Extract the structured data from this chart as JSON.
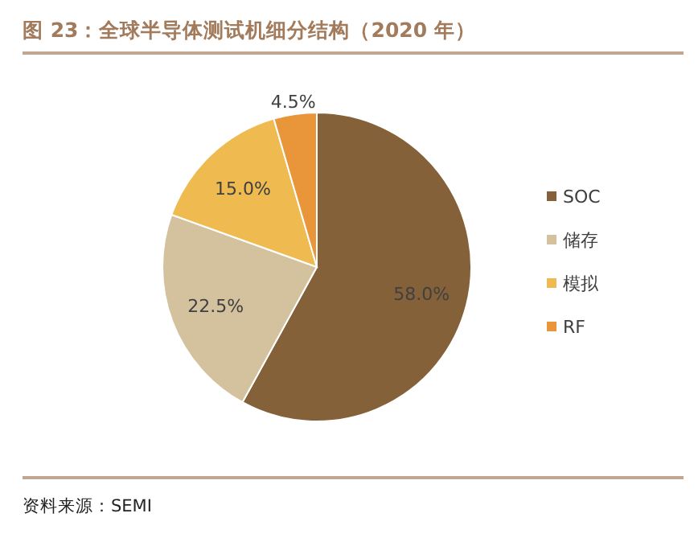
{
  "chart_data": {
    "type": "pie",
    "title": "图 23：全球半导体测试机细分结构（2020 年）",
    "categories": [
      "SOC",
      "储存",
      "模拟",
      "RF"
    ],
    "values": [
      58.0,
      22.5,
      15.0,
      4.5
    ],
    "value_labels": [
      "58.0%",
      "22.5%",
      "15.0%",
      "4.5%"
    ],
    "colors": [
      "#85613a",
      "#d4c29f",
      "#efbb50",
      "#e9963a"
    ],
    "legend": "right",
    "annotations": [
      "资料来源：SEMI"
    ]
  }
}
